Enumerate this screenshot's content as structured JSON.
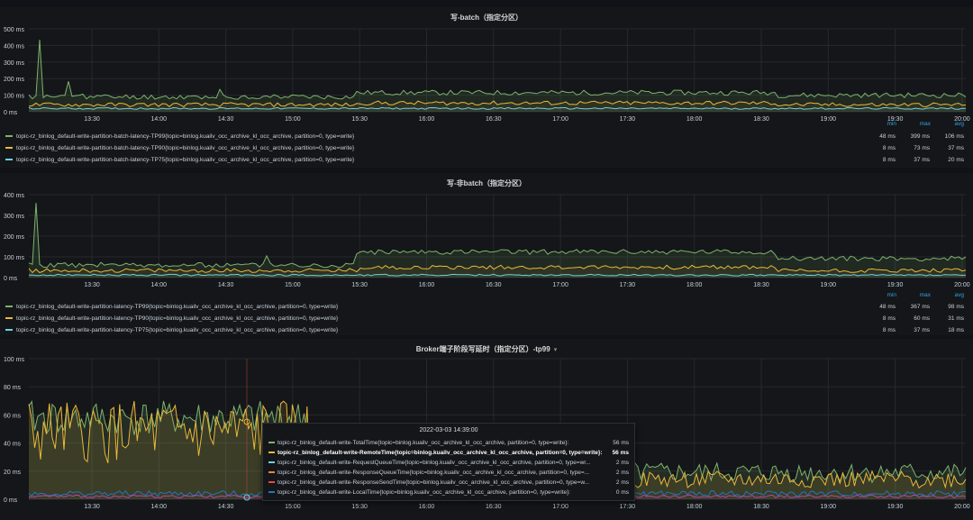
{
  "colors": {
    "green": "#7eb26d",
    "orange": "#eab839",
    "cyan": "#6ed0e0",
    "blue": "#1f78c1",
    "purple": "#ba43a9",
    "red": "#e24d42"
  },
  "x_ticks": [
    "13:30",
    "14:00",
    "14:30",
    "15:00",
    "15:30",
    "16:00",
    "16:30",
    "17:00",
    "17:30",
    "18:00",
    "18:30",
    "19:00",
    "19:30",
    "20:00"
  ],
  "legend_headers": {
    "min": "min",
    "max": "max",
    "avg": "avg"
  },
  "panel1": {
    "title": "写-batch（指定分区）",
    "y_ticks": [
      "500 ms",
      "400 ms",
      "300 ms",
      "200 ms",
      "100 ms",
      "0 ms"
    ],
    "legend": [
      {
        "label": "topic-rz_binlog_default-write-partition-batch-latency-TP99{topic=binlog.kuailv_occ_archive_kl_occ_archive, partition=0, type=write}",
        "min": "48 ms",
        "max": "399 ms",
        "avg": "106 ms",
        "color": "#7eb26d"
      },
      {
        "label": "topic-rz_binlog_default-write-partition-batch-latency-TP90{topic=binlog.kuailv_occ_archive_kl_occ_archive, partition=0, type=write}",
        "min": "8 ms",
        "max": "73 ms",
        "avg": "37 ms",
        "color": "#eab839"
      },
      {
        "label": "topic-rz_binlog_default-write-partition-batch-latency-TP75{topic=binlog.kuailv_occ_archive_kl_occ_archive, partition=0, type=write}",
        "min": "8 ms",
        "max": "37 ms",
        "avg": "20 ms",
        "color": "#6ed0e0"
      }
    ]
  },
  "panel2": {
    "title": "写-非batch（指定分区）",
    "y_ticks": [
      "400 ms",
      "300 ms",
      "200 ms",
      "100 ms",
      "0 ms"
    ],
    "legend": [
      {
        "label": "topic-rz_binlog_default-write-partition-latency-TP99{topic=binlog.kuailv_occ_archive_kl_occ_archive, partition=0, type=write}",
        "min": "48 ms",
        "max": "367 ms",
        "avg": "98 ms",
        "color": "#7eb26d"
      },
      {
        "label": "topic-rz_binlog_default-write-partition-latency-TP90{topic=binlog.kuailv_occ_archive_kl_occ_archive, partition=0, type=write}",
        "min": "8 ms",
        "max": "60 ms",
        "avg": "31 ms",
        "color": "#eab839"
      },
      {
        "label": "topic-rz_binlog_default-write-partition-latency-TP75{topic=binlog.kuailv_occ_archive_kl_occ_archive, partition=0, type=write}",
        "min": "8 ms",
        "max": "37 ms",
        "avg": "18 ms",
        "color": "#6ed0e0"
      }
    ]
  },
  "panel3": {
    "title": "Broker端子阶段写延时（指定分区）-tp99",
    "y_ticks": [
      "100 ms",
      "80 ms",
      "60 ms",
      "40 ms",
      "20 ms",
      "0 ms"
    ]
  },
  "tooltip": {
    "time": "2022-03-03 14:39:00",
    "rows": [
      {
        "label": "topic-rz_binlog_default-write-TotalTime{topic=binlog.kuailv_occ_archive_kl_occ_archive, partition=0, type=write}:",
        "value": "56 ms",
        "color": "#7eb26d"
      },
      {
        "label": "topic-rz_binlog_default-write-RemoteTime{topic=binlog.kuailv_occ_archive_kl_occ_archive, partition=0, type=write}:",
        "value": "56 ms",
        "color": "#eab839"
      },
      {
        "label": "topic-rz_binlog_default-write-RequestQueueTime{topic=binlog.kuailv_occ_archive_kl_occ_archive, partition=0, type=wr...",
        "value": "2 ms",
        "color": "#6ed0e0"
      },
      {
        "label": "topic-rz_binlog_default-write-ResponseQueueTime{topic=binlog.kuailv_occ_archive_kl_occ_archive, partition=0, type=...",
        "value": "2 ms",
        "color": "#ef843c"
      },
      {
        "label": "topic-rz_binlog_default-write-ResponseSendTime{topic=binlog.kuailv_occ_archive_kl_occ_archive, partition=0, type=w...",
        "value": "2 ms",
        "color": "#e24d42"
      },
      {
        "label": "topic-rz_binlog_default-write-LocalTime{topic=binlog.kuailv_occ_archive_kl_occ_archive, partition=0, type=write}:",
        "value": "0 ms",
        "color": "#1f78c1"
      }
    ]
  }
}
